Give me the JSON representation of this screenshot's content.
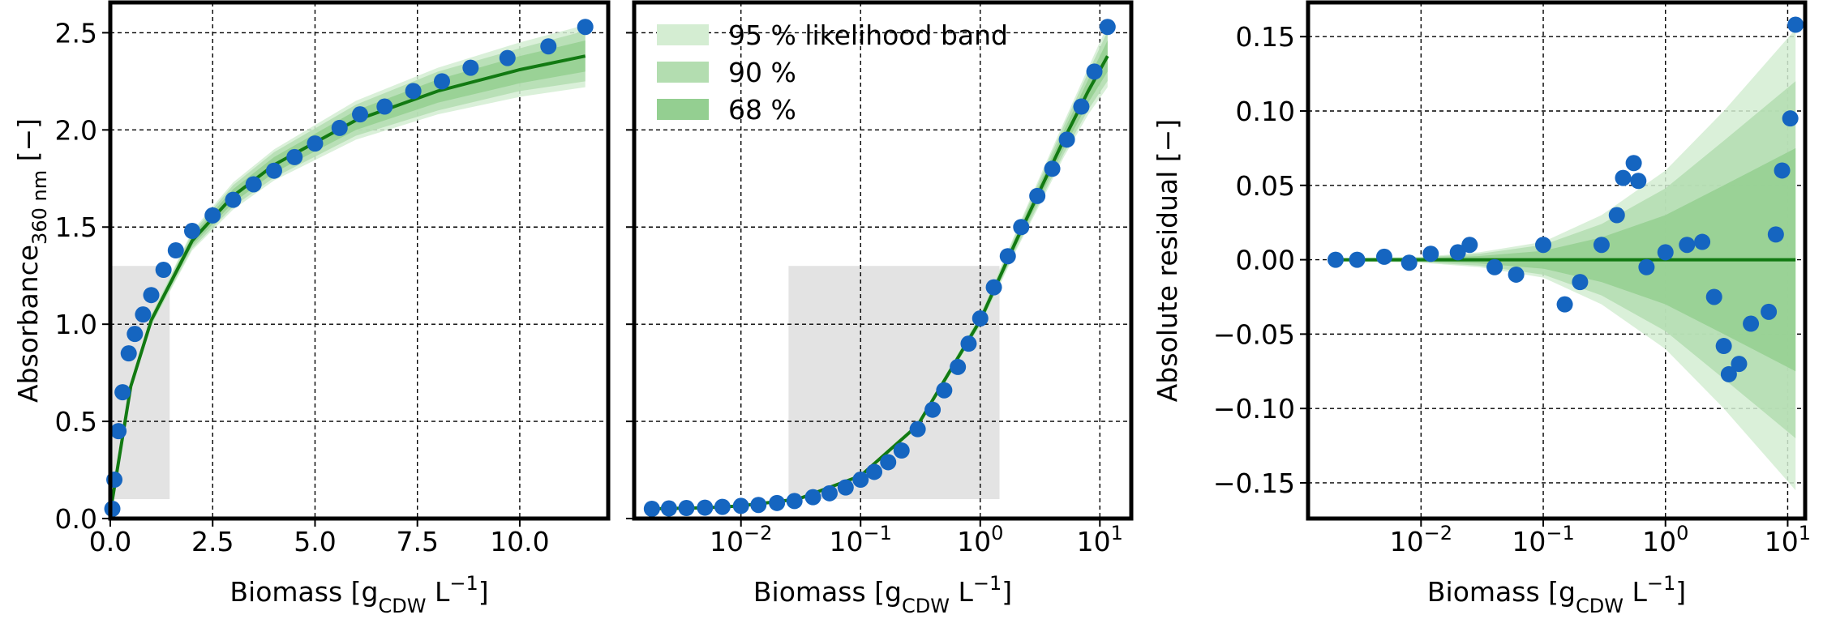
{
  "chart_data": [
    {
      "type": "scatter",
      "xscale": "linear",
      "grid": true,
      "ylabel": [
        "Absorbance",
        "360 nm",
        " [−]"
      ],
      "ylabel_style": [
        "normal",
        "sub",
        "normal"
      ],
      "xlabel": [
        "Biomass [g",
        "CDW",
        " L",
        "−1",
        "]"
      ],
      "xlabel_style": [
        "normal",
        "sub",
        "normal",
        "super",
        "normal"
      ],
      "xlim": [
        0,
        12.16
      ],
      "ylim": [
        0,
        2.656
      ],
      "xticks": [
        {
          "value": 0,
          "label": "0.0"
        },
        2.5,
        {
          "value": 5,
          "label": "5.0"
        },
        7.5,
        {
          "value": 10,
          "label": "10.0"
        }
      ],
      "yticks": [
        {
          "value": 0,
          "label": "0.0"
        },
        0.5,
        {
          "value": 1,
          "label": "1.0"
        },
        1.5,
        {
          "value": 2,
          "label": "2.0"
        },
        2.5
      ],
      "show_ytick_labels": true,
      "highlight": {
        "x": [
          0,
          1.45
        ],
        "y": [
          0.1,
          1.3
        ],
        "color": "#e3e3e3"
      },
      "fit": {
        "color": "#127a12",
        "x": [
          0,
          0.5,
          1,
          2,
          3,
          4,
          6,
          8,
          10,
          11.6
        ],
        "y": [
          0.03,
          0.68,
          1.02,
          1.43,
          1.66,
          1.82,
          2.05,
          2.2,
          2.31,
          2.38
        ]
      },
      "bands": [
        {
          "color": "#d4edd2",
          "lower": [
            0.02,
            0.66,
            0.99,
            1.38,
            1.59,
            1.74,
            1.95,
            2.08,
            2.17,
            2.22
          ],
          "upper": [
            0.04,
            0.7,
            1.05,
            1.48,
            1.73,
            1.9,
            2.15,
            2.32,
            2.45,
            2.54
          ]
        },
        {
          "color": "#b3ddb0",
          "lower": [
            0.02,
            0.66,
            0.995,
            1.39,
            1.605,
            1.755,
            1.97,
            2.1,
            2.2,
            2.25
          ],
          "upper": [
            0.04,
            0.7,
            1.045,
            1.47,
            1.715,
            1.885,
            2.13,
            2.3,
            2.42,
            2.51
          ]
        },
        {
          "color": "#94cf91",
          "lower": [
            0.025,
            0.67,
            1.005,
            1.405,
            1.625,
            1.78,
            2.0,
            2.14,
            2.24,
            2.3
          ],
          "upper": [
            0.035,
            0.69,
            1.035,
            1.455,
            1.695,
            1.86,
            2.1,
            2.26,
            2.38,
            2.46
          ]
        }
      ],
      "points": {
        "color": "#1565c0",
        "x": [
          0.05,
          0.1,
          0.2,
          0.3,
          0.45,
          0.6,
          0.8,
          1.0,
          1.3,
          1.6,
          2.0,
          2.5,
          3.0,
          3.5,
          4.0,
          4.5,
          5.0,
          5.6,
          6.1,
          6.7,
          7.4,
          8.1,
          8.8,
          9.7,
          10.7,
          11.6
        ],
        "y": [
          0.05,
          0.2,
          0.45,
          0.65,
          0.85,
          0.95,
          1.05,
          1.15,
          1.28,
          1.38,
          1.48,
          1.56,
          1.64,
          1.72,
          1.79,
          1.86,
          1.93,
          2.01,
          2.08,
          2.12,
          2.2,
          2.25,
          2.32,
          2.37,
          2.43,
          2.53
        ]
      }
    },
    {
      "type": "scatter",
      "xscale": "log",
      "grid": true,
      "xlabel": [
        "Biomass [g",
        "CDW",
        " L",
        "−1",
        "]"
      ],
      "xlabel_style": [
        "normal",
        "sub",
        "normal",
        "super",
        "normal"
      ],
      "xlim": [
        0.00128,
        18.3
      ],
      "ylim": [
        0,
        2.656
      ],
      "xticks": [
        {
          "value": 0.01,
          "label": "10",
          "power": "−2"
        },
        {
          "value": 0.1,
          "label": "10",
          "power": "−1"
        },
        {
          "value": 1,
          "label": "10",
          "power": "0"
        },
        {
          "value": 10,
          "label": "10",
          "power": "1"
        }
      ],
      "yticks": [
        0,
        0.5,
        1,
        1.5,
        2,
        2.5
      ],
      "show_ytick_labels": false,
      "legend": "upper left",
      "highlight": {
        "x": [
          0.025,
          1.45
        ],
        "y": [
          0.1,
          1.3
        ],
        "color": "#e3e3e3"
      },
      "fit": {
        "color": "#127a12",
        "x": [
          0.0018,
          0.005,
          0.01,
          0.03,
          0.1,
          0.3,
          1,
          2,
          3,
          5,
          8,
          11.6
        ],
        "y": [
          0.05,
          0.055,
          0.065,
          0.1,
          0.22,
          0.48,
          1.02,
          1.43,
          1.66,
          1.95,
          2.2,
          2.38
        ]
      },
      "bands": [
        {
          "name": "95 % likelihood band",
          "color": "#d4edd2",
          "lower": [
            0.048,
            0.053,
            0.062,
            0.096,
            0.212,
            0.465,
            0.99,
            1.38,
            1.59,
            1.86,
            2.08,
            2.22
          ],
          "upper": [
            0.052,
            0.057,
            0.068,
            0.104,
            0.228,
            0.495,
            1.05,
            1.48,
            1.73,
            2.04,
            2.32,
            2.54
          ]
        },
        {
          "name": "90 %",
          "color": "#b3ddb0",
          "lower": [
            0.0484,
            0.0534,
            0.0626,
            0.0968,
            0.2136,
            0.468,
            0.996,
            1.39,
            1.604,
            1.878,
            2.104,
            2.252
          ],
          "upper": [
            0.0516,
            0.0566,
            0.0674,
            0.1032,
            0.2264,
            0.492,
            1.044,
            1.47,
            1.716,
            2.022,
            2.296,
            2.508
          ]
        },
        {
          "name": "68 %",
          "color": "#94cf91",
          "lower": [
            0.049,
            0.054,
            0.0635,
            0.098,
            0.216,
            0.4725,
            1.005,
            1.405,
            1.625,
            1.905,
            2.14,
            2.3
          ],
          "upper": [
            0.051,
            0.056,
            0.0665,
            0.102,
            0.224,
            0.4875,
            1.035,
            1.455,
            1.695,
            1.995,
            2.26,
            2.46
          ]
        }
      ],
      "points": {
        "color": "#1565c0",
        "x": [
          0.0018,
          0.0025,
          0.0035,
          0.005,
          0.007,
          0.01,
          0.014,
          0.02,
          0.028,
          0.04,
          0.055,
          0.075,
          0.1,
          0.13,
          0.17,
          0.22,
          0.3,
          0.4,
          0.5,
          0.65,
          0.8,
          1.0,
          1.3,
          1.7,
          2.2,
          3.0,
          4.0,
          5.3,
          7.0,
          9.0,
          11.6
        ],
        "y": [
          0.05,
          0.052,
          0.054,
          0.056,
          0.06,
          0.065,
          0.07,
          0.08,
          0.09,
          0.11,
          0.13,
          0.16,
          0.2,
          0.24,
          0.29,
          0.35,
          0.46,
          0.56,
          0.66,
          0.78,
          0.9,
          1.03,
          1.19,
          1.35,
          1.5,
          1.66,
          1.8,
          1.95,
          2.12,
          2.3,
          2.53
        ]
      }
    },
    {
      "type": "scatter",
      "xscale": "log",
      "grid": true,
      "ylabel": [
        "Absolute residual [−]"
      ],
      "ylabel_style": [
        "normal"
      ],
      "xlabel": [
        "Biomass [g",
        "CDW",
        " L",
        "−1",
        "]"
      ],
      "xlabel_style": [
        "normal",
        "sub",
        "normal",
        "super",
        "normal"
      ],
      "xlim": [
        0.00119,
        13.9
      ],
      "ylim": [
        -0.174,
        0.173
      ],
      "xticks": [
        {
          "value": 0.01,
          "label": "10",
          "power": "−2"
        },
        {
          "value": 0.1,
          "label": "10",
          "power": "−1"
        },
        {
          "value": 1,
          "label": "10",
          "power": "0"
        },
        {
          "value": 10,
          "label": "10",
          "power": "1"
        }
      ],
      "yticks": [
        {
          "value": -0.15,
          "label": "−0.15"
        },
        {
          "value": -0.1,
          "label": "−0.10"
        },
        {
          "value": -0.05,
          "label": "−0.05"
        },
        {
          "value": 0,
          "label": "0.00"
        },
        0.05,
        {
          "value": 0.1,
          "label": "0.10"
        },
        0.15
      ],
      "show_ytick_labels": true,
      "fit": {
        "color": "#127a12",
        "x": [
          0.0018,
          0.01,
          0.03,
          0.1,
          0.3,
          1,
          3,
          11.6
        ],
        "y": [
          0,
          0,
          0,
          0,
          0,
          0,
          0,
          0
        ]
      },
      "bands": [
        {
          "color": "#d4edd2",
          "lower": [
            -0.001,
            -0.002,
            -0.005,
            -0.012,
            -0.03,
            -0.06,
            -0.1,
            -0.155
          ],
          "upper": [
            0.001,
            0.002,
            0.005,
            0.012,
            0.03,
            0.06,
            0.1,
            0.155
          ]
        },
        {
          "color": "#b3ddb0",
          "lower": [
            -0.0008,
            -0.0016,
            -0.004,
            -0.01,
            -0.024,
            -0.048,
            -0.08,
            -0.12
          ],
          "upper": [
            0.0008,
            0.0016,
            0.004,
            0.01,
            0.024,
            0.048,
            0.08,
            0.12
          ]
        },
        {
          "color": "#94cf91",
          "lower": [
            -0.0005,
            -0.001,
            -0.0025,
            -0.006,
            -0.015,
            -0.03,
            -0.05,
            -0.075
          ],
          "upper": [
            0.0005,
            0.001,
            0.0025,
            0.006,
            0.015,
            0.03,
            0.05,
            0.075
          ]
        }
      ],
      "points": {
        "color": "#1565c0",
        "x": [
          0.002,
          0.003,
          0.005,
          0.008,
          0.012,
          0.02,
          0.025,
          0.04,
          0.06,
          0.1,
          0.15,
          0.2,
          0.3,
          0.4,
          0.45,
          0.55,
          0.6,
          0.7,
          1.0,
          1.5,
          2.0,
          2.5,
          3.0,
          3.3,
          4.0,
          5.0,
          7.0,
          8.0,
          9.0,
          10.5,
          11.6
        ],
        "y": [
          0,
          0,
          0.002,
          -0.002,
          0.004,
          0.005,
          0.01,
          -0.005,
          -0.01,
          0.01,
          -0.03,
          -0.015,
          0.01,
          0.03,
          0.055,
          0.065,
          0.053,
          -0.005,
          0.005,
          0.01,
          0.012,
          -0.025,
          -0.058,
          -0.077,
          -0.07,
          -0.043,
          -0.035,
          0.017,
          0.06,
          0.095,
          0.158
        ]
      }
    }
  ]
}
